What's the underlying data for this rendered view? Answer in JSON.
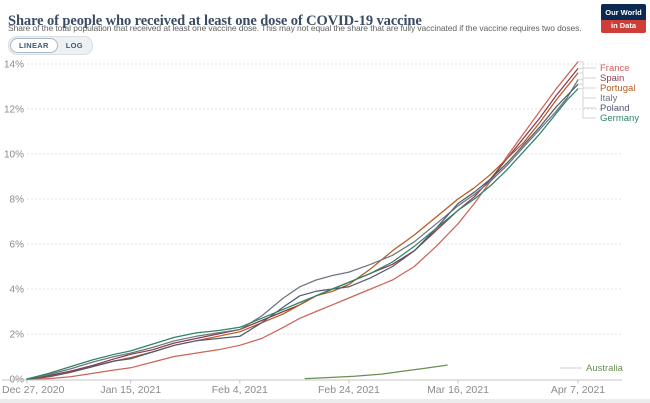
{
  "header": {
    "title": "Share of people who received at least one dose of COVID-19 vaccine",
    "subtitle": "Share of the total population that received at least one vaccine dose. This may not equal the share that are fully vaccinated if the vaccine requires two doses.",
    "logo": {
      "line1": "Our World",
      "line2": "in Data",
      "bg_color": "#0b2a52",
      "accent_color": "#cf3e36"
    }
  },
  "controls": {
    "scale_options": [
      "LINEAR",
      "LOG"
    ],
    "linear_label": "LINEAR",
    "log_label": "LOG",
    "selected": "LINEAR"
  },
  "chart_data": {
    "type": "line",
    "title": "Share of people who received at least one dose of COVID-19 vaccine",
    "xlabel": "",
    "ylabel": "",
    "ylim": [
      0,
      14
    ],
    "grid": true,
    "legend_position": "right",
    "x_axis": {
      "start_date": "Dec 27, 2020",
      "end_date": "Apr 7, 2021",
      "ticks": [
        {
          "day": 0,
          "label": "Dec 27, 2020",
          "align": "start"
        },
        {
          "day": 19,
          "label": "Jan 15, 2021",
          "align": "middle"
        },
        {
          "day": 39,
          "label": "Feb 4, 2021",
          "align": "middle"
        },
        {
          "day": 59,
          "label": "Feb 24, 2021",
          "align": "middle"
        },
        {
          "day": 79,
          "label": "Mar 16, 2021",
          "align": "middle"
        },
        {
          "day": 101,
          "label": "Apr 7, 2021",
          "align": "middle"
        }
      ]
    },
    "y_axis": {
      "ticks": [
        {
          "value": 0,
          "label": "0%"
        },
        {
          "value": 2,
          "label": "2%"
        },
        {
          "value": 4,
          "label": "4%"
        },
        {
          "value": 6,
          "label": "6%"
        },
        {
          "value": 8,
          "label": "8%"
        },
        {
          "value": 10,
          "label": "10%"
        },
        {
          "value": 12,
          "label": "12%"
        },
        {
          "value": 14,
          "label": "14%"
        }
      ]
    },
    "series": [
      {
        "name": "France",
        "color": "#cc655a",
        "end_value_pct": 14.1,
        "points": [
          [
            0,
            0
          ],
          [
            4,
            0.02
          ],
          [
            8,
            0.1
          ],
          [
            12,
            0.25
          ],
          [
            16,
            0.4
          ],
          [
            19,
            0.5
          ],
          [
            23,
            0.75
          ],
          [
            27,
            1.0
          ],
          [
            31,
            1.15
          ],
          [
            35,
            1.3
          ],
          [
            39,
            1.5
          ],
          [
            43,
            1.8
          ],
          [
            47,
            2.3
          ],
          [
            50,
            2.7
          ],
          [
            53,
            3.0
          ],
          [
            56,
            3.3
          ],
          [
            59,
            3.6
          ],
          [
            63,
            4.0
          ],
          [
            67,
            4.4
          ],
          [
            71,
            5.0
          ],
          [
            75,
            5.9
          ],
          [
            79,
            6.9
          ],
          [
            82,
            7.8
          ],
          [
            85,
            8.8
          ],
          [
            88,
            9.9
          ],
          [
            91,
            10.9
          ],
          [
            94,
            11.9
          ],
          [
            97,
            12.9
          ],
          [
            99,
            13.5
          ],
          [
            101,
            14.1
          ]
        ]
      },
      {
        "name": "Spain",
        "color": "#8a3b4c",
        "end_value_pct": 13.8,
        "points": [
          [
            0,
            0
          ],
          [
            4,
            0.15
          ],
          [
            8,
            0.35
          ],
          [
            12,
            0.6
          ],
          [
            16,
            0.9
          ],
          [
            19,
            1.1
          ],
          [
            23,
            1.3
          ],
          [
            27,
            1.6
          ],
          [
            31,
            1.8
          ],
          [
            35,
            2.0
          ],
          [
            39,
            2.2
          ],
          [
            43,
            2.6
          ],
          [
            47,
            3.0
          ],
          [
            50,
            3.3
          ],
          [
            53,
            3.7
          ],
          [
            56,
            4.0
          ],
          [
            59,
            4.3
          ],
          [
            63,
            4.7
          ],
          [
            67,
            5.1
          ],
          [
            71,
            5.7
          ],
          [
            75,
            6.6
          ],
          [
            79,
            7.5
          ],
          [
            82,
            8.1
          ],
          [
            85,
            8.9
          ],
          [
            88,
            9.8
          ],
          [
            91,
            10.7
          ],
          [
            94,
            11.6
          ],
          [
            97,
            12.6
          ],
          [
            99,
            13.2
          ],
          [
            101,
            13.8
          ]
        ]
      },
      {
        "name": "Portugal",
        "color": "#b35a1f",
        "end_value_pct": 13.6,
        "points": [
          [
            0,
            0
          ],
          [
            4,
            0.1
          ],
          [
            8,
            0.3
          ],
          [
            12,
            0.55
          ],
          [
            16,
            0.8
          ],
          [
            19,
            0.95
          ],
          [
            23,
            1.2
          ],
          [
            27,
            1.5
          ],
          [
            31,
            1.7
          ],
          [
            35,
            1.9
          ],
          [
            39,
            2.1
          ],
          [
            43,
            2.5
          ],
          [
            47,
            2.9
          ],
          [
            50,
            3.3
          ],
          [
            53,
            3.7
          ],
          [
            56,
            3.9
          ],
          [
            59,
            4.2
          ],
          [
            63,
            4.9
          ],
          [
            67,
            5.7
          ],
          [
            71,
            6.4
          ],
          [
            75,
            7.2
          ],
          [
            79,
            8.0
          ],
          [
            82,
            8.5
          ],
          [
            85,
            9.1
          ],
          [
            88,
            9.8
          ],
          [
            91,
            10.5
          ],
          [
            94,
            11.4
          ],
          [
            97,
            12.4
          ],
          [
            99,
            13.0
          ],
          [
            101,
            13.6
          ]
        ]
      },
      {
        "name": "Italy",
        "color": "#6d7583",
        "end_value_pct": 13.3,
        "points": [
          [
            0,
            0
          ],
          [
            4,
            0.2
          ],
          [
            8,
            0.45
          ],
          [
            12,
            0.75
          ],
          [
            16,
            1.0
          ],
          [
            19,
            1.15
          ],
          [
            23,
            1.4
          ],
          [
            27,
            1.7
          ],
          [
            31,
            1.9
          ],
          [
            35,
            2.05
          ],
          [
            39,
            2.2
          ],
          [
            43,
            2.8
          ],
          [
            47,
            3.6
          ],
          [
            50,
            4.1
          ],
          [
            53,
            4.4
          ],
          [
            56,
            4.6
          ],
          [
            59,
            4.75
          ],
          [
            63,
            5.1
          ],
          [
            67,
            5.5
          ],
          [
            71,
            6.1
          ],
          [
            75,
            6.9
          ],
          [
            79,
            7.7
          ],
          [
            82,
            8.2
          ],
          [
            85,
            8.8
          ],
          [
            88,
            9.5
          ],
          [
            91,
            10.3
          ],
          [
            94,
            11.1
          ],
          [
            97,
            11.9
          ],
          [
            99,
            12.5
          ],
          [
            101,
            13.3
          ]
        ]
      },
      {
        "name": "Poland",
        "color": "#515a6e",
        "end_value_pct": 13.1,
        "points": [
          [
            0,
            0
          ],
          [
            4,
            0.1
          ],
          [
            8,
            0.3
          ],
          [
            12,
            0.55
          ],
          [
            16,
            0.8
          ],
          [
            19,
            0.9
          ],
          [
            23,
            1.2
          ],
          [
            27,
            1.5
          ],
          [
            31,
            1.7
          ],
          [
            35,
            1.8
          ],
          [
            39,
            1.9
          ],
          [
            43,
            2.5
          ],
          [
            47,
            3.2
          ],
          [
            50,
            3.7
          ],
          [
            53,
            3.9
          ],
          [
            56,
            4.0
          ],
          [
            59,
            4.1
          ],
          [
            63,
            4.5
          ],
          [
            67,
            5.0
          ],
          [
            71,
            5.7
          ],
          [
            75,
            6.7
          ],
          [
            79,
            7.8
          ],
          [
            82,
            8.3
          ],
          [
            85,
            8.9
          ],
          [
            88,
            9.6
          ],
          [
            91,
            10.4
          ],
          [
            94,
            11.2
          ],
          [
            97,
            12.1
          ],
          [
            99,
            12.6
          ],
          [
            101,
            13.1
          ]
        ]
      },
      {
        "name": "Germany",
        "color": "#2e8465",
        "end_value_pct": 12.9,
        "points": [
          [
            0,
            0
          ],
          [
            4,
            0.25
          ],
          [
            8,
            0.55
          ],
          [
            12,
            0.85
          ],
          [
            16,
            1.1
          ],
          [
            19,
            1.25
          ],
          [
            23,
            1.55
          ],
          [
            27,
            1.85
          ],
          [
            31,
            2.05
          ],
          [
            35,
            2.15
          ],
          [
            39,
            2.3
          ],
          [
            43,
            2.7
          ],
          [
            47,
            3.1
          ],
          [
            50,
            3.4
          ],
          [
            53,
            3.7
          ],
          [
            56,
            4.0
          ],
          [
            59,
            4.3
          ],
          [
            63,
            4.7
          ],
          [
            67,
            5.2
          ],
          [
            71,
            5.9
          ],
          [
            75,
            6.7
          ],
          [
            79,
            7.5
          ],
          [
            82,
            8.0
          ],
          [
            85,
            8.6
          ],
          [
            88,
            9.3
          ],
          [
            91,
            10.1
          ],
          [
            94,
            10.9
          ],
          [
            97,
            11.8
          ],
          [
            99,
            12.4
          ],
          [
            101,
            12.9
          ]
        ]
      },
      {
        "name": "Australia",
        "color": "#688f54",
        "end_value_pct": 0.62,
        "detached_legend": true,
        "points": [
          [
            51,
            0.02
          ],
          [
            55,
            0.06
          ],
          [
            60,
            0.12
          ],
          [
            65,
            0.22
          ],
          [
            70,
            0.38
          ],
          [
            73,
            0.48
          ],
          [
            77,
            0.62
          ]
        ]
      }
    ]
  }
}
